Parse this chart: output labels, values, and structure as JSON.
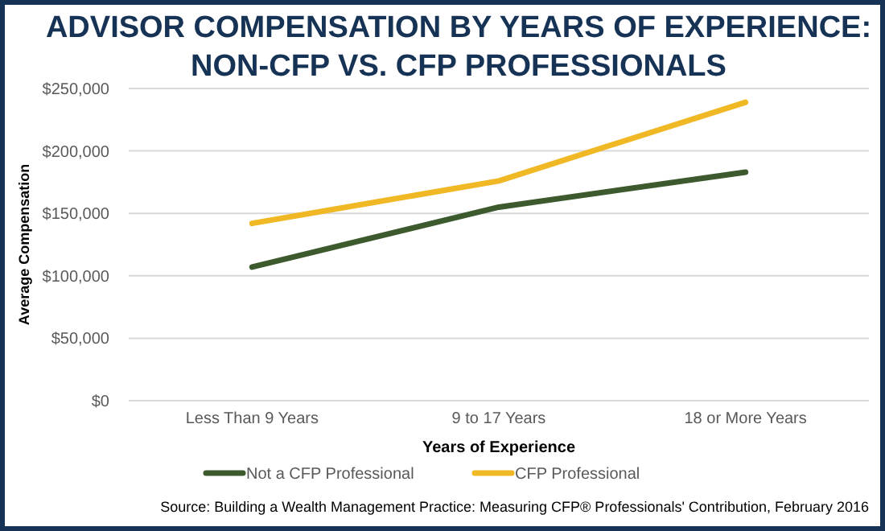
{
  "chart_data": {
    "type": "line",
    "title": "ADVISOR COMPENSATION BY YEARS OF EXPERIENCE:\nNON-CFP VS. CFP PROFESSIONALS",
    "xlabel": "Years of Experience",
    "ylabel": "Average Compensation",
    "categories": [
      "Less Than 9 Years",
      "9 to 17 Years",
      "18 or More Years"
    ],
    "series": [
      {
        "name": "Not a CFP Professional",
        "color": "#3d5a2e",
        "values": [
          107000,
          155000,
          183000
        ]
      },
      {
        "name": "CFP Professional",
        "color": "#f0b825",
        "values": [
          142000,
          176000,
          239000
        ]
      }
    ],
    "ylim": [
      0,
      250000
    ],
    "yticks": [
      {
        "value": 0,
        "label": "$0"
      },
      {
        "value": 50000,
        "label": "$50,000"
      },
      {
        "value": 100000,
        "label": "$100,000"
      },
      {
        "value": 150000,
        "label": "$150,000"
      },
      {
        "value": 200000,
        "label": "$200,000"
      },
      {
        "value": 250000,
        "label": "$250,000"
      }
    ],
    "grid": "y",
    "legend": "bottom",
    "marker": "none",
    "line_style": "solid",
    "annotations": [
      "Source: Building a Wealth Management Practice: Measuring CFP® Professionals' Contribution, February 2016"
    ]
  }
}
